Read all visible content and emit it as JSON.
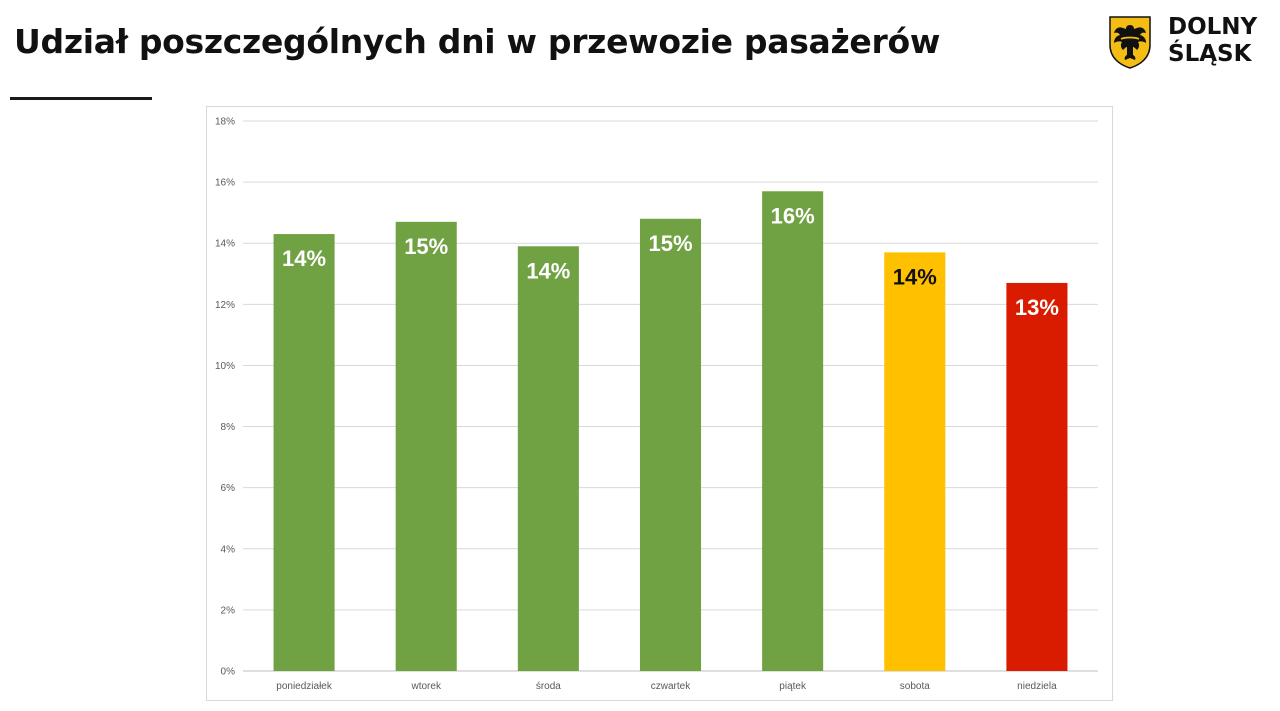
{
  "page": {
    "title": "Udział poszczególnych dni w przewozie pasażerów"
  },
  "logo": {
    "line1": "DOLNY",
    "line2": "ŚLĄSK",
    "icon": "eagle-coat-of-arms-icon"
  },
  "chart_data": {
    "type": "bar",
    "categories": [
      "poniedziałek",
      "wtorek",
      "środa",
      "czwartek",
      "piątek",
      "sobota",
      "niedziela"
    ],
    "values": [
      14.3,
      14.7,
      13.9,
      14.8,
      15.7,
      13.7,
      12.7
    ],
    "data_labels": [
      "14%",
      "15%",
      "14%",
      "15%",
      "16%",
      "14%",
      "13%"
    ],
    "bar_colors": [
      "#70a244",
      "#70a244",
      "#70a244",
      "#70a244",
      "#70a244",
      "#ffc000",
      "#d91c00"
    ],
    "label_colors": [
      "#ffffff",
      "#ffffff",
      "#ffffff",
      "#ffffff",
      "#ffffff",
      "#111111",
      "#ffffff"
    ],
    "ylim": [
      0,
      18
    ],
    "yticks": [
      0,
      2,
      4,
      6,
      8,
      10,
      12,
      14,
      16,
      18
    ],
    "ytick_labels": [
      "0%",
      "2%",
      "4%",
      "6%",
      "8%",
      "10%",
      "12%",
      "14%",
      "16%",
      "18%"
    ],
    "title": "",
    "xlabel": "",
    "ylabel": "",
    "grid": true,
    "legend": false
  }
}
